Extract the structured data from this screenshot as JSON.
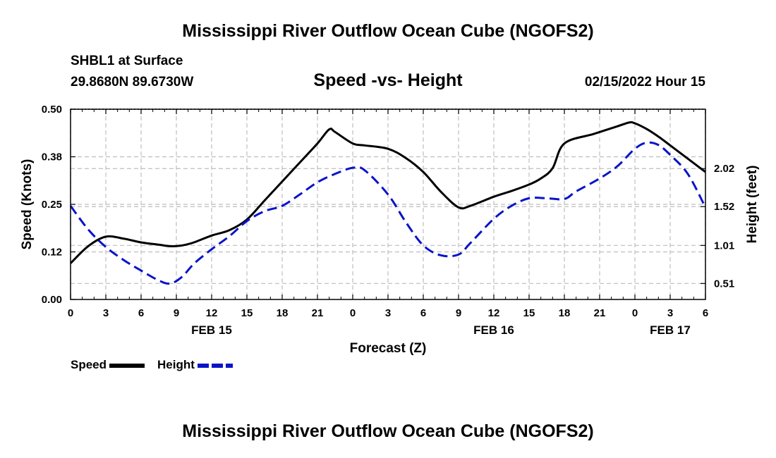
{
  "title": "Mississippi River Outflow Ocean Cube (NGOFS2)",
  "footer_title": "Mississippi River Outflow Ocean Cube (NGOFS2)",
  "station": "SHBL1 at Surface",
  "coordinates": "29.8680N  89.6730W",
  "subtitle": "Speed -vs- Height",
  "datetime": "02/15/2022 Hour 15",
  "chart_data": {
    "type": "line",
    "title": "Speed -vs- Height",
    "xlabel": "Forecast (Z)",
    "ylabel": "Speed (Knots)",
    "y2label": "Height (feet)",
    "xlim": [
      0,
      54
    ],
    "ylim": [
      0,
      0.5
    ],
    "y2lim": [
      0.3,
      2.8
    ],
    "grid": true,
    "x_tick_labels": [
      "0",
      "3",
      "6",
      "9",
      "12",
      "15",
      "18",
      "21",
      "0",
      "3",
      "6",
      "9",
      "12",
      "15",
      "18",
      "21",
      "0",
      "3",
      "6"
    ],
    "x_tick_values": [
      0,
      3,
      6,
      9,
      12,
      15,
      18,
      21,
      24,
      27,
      30,
      33,
      36,
      39,
      42,
      45,
      48,
      51,
      54
    ],
    "date_labels": [
      {
        "label": "FEB 15",
        "x": 12
      },
      {
        "label": "FEB 16",
        "x": 36
      },
      {
        "label": "FEB 17",
        "x": 51
      }
    ],
    "y_tick_labels": [
      "0.00",
      "0.12",
      "0.25",
      "0.38",
      "0.50"
    ],
    "y_tick_values": [
      0.0,
      0.125,
      0.25,
      0.375,
      0.5
    ],
    "y2_tick_labels": [
      "0.51",
      "1.01",
      "1.52",
      "2.02"
    ],
    "y2_tick_values": [
      0.51,
      1.01,
      1.52,
      2.02
    ],
    "series": [
      {
        "name": "Speed",
        "axis": "left",
        "color": "#000000",
        "dash": "none",
        "x": [
          0,
          1.5,
          3,
          4.5,
          6,
          7.5,
          8.5,
          9.5,
          10.5,
          12,
          13.5,
          15,
          16.5,
          18,
          19.5,
          21,
          22,
          22.5,
          24,
          25,
          27,
          28.5,
          30,
          31.5,
          33,
          34,
          36,
          37.5,
          39,
          40,
          41,
          42,
          44.5,
          46.5,
          47.5,
          48,
          49,
          50,
          51,
          52.5,
          54
        ],
        "y": [
          0.095,
          0.14,
          0.165,
          0.16,
          0.15,
          0.144,
          0.14,
          0.142,
          0.15,
          0.168,
          0.182,
          0.21,
          0.26,
          0.31,
          0.36,
          0.41,
          0.447,
          0.44,
          0.41,
          0.405,
          0.396,
          0.372,
          0.335,
          0.283,
          0.242,
          0.246,
          0.27,
          0.285,
          0.302,
          0.318,
          0.345,
          0.41,
          0.435,
          0.455,
          0.465,
          0.463,
          0.448,
          0.428,
          0.405,
          0.37,
          0.335
        ]
      },
      {
        "name": "Height",
        "axis": "right",
        "color": "#0a14c8",
        "dash": "14 7",
        "x": [
          0,
          1.5,
          3,
          4.5,
          6,
          7.5,
          8.5,
          9.5,
          10.5,
          12,
          13.5,
          15,
          16.5,
          18,
          19.5,
          21,
          22.5,
          24,
          25,
          27,
          28.5,
          30,
          31.5,
          33,
          34,
          36,
          37.5,
          39,
          40.5,
          42,
          43,
          45,
          46.5,
          48,
          49,
          50,
          51,
          52.5,
          54
        ],
        "y": [
          1.53,
          1.22,
          0.99,
          0.82,
          0.68,
          0.55,
          0.51,
          0.6,
          0.77,
          0.96,
          1.13,
          1.33,
          1.46,
          1.53,
          1.68,
          1.84,
          1.95,
          2.03,
          2.0,
          1.68,
          1.32,
          1.01,
          0.88,
          0.89,
          1.04,
          1.36,
          1.53,
          1.63,
          1.63,
          1.62,
          1.72,
          1.89,
          2.05,
          2.28,
          2.36,
          2.33,
          2.2,
          1.95,
          1.51
        ]
      }
    ],
    "legend": [
      {
        "label": "Speed",
        "color": "#000000",
        "dash": "none"
      },
      {
        "label": "Height",
        "color": "#0a14c8",
        "dash": "dashed"
      }
    ]
  }
}
